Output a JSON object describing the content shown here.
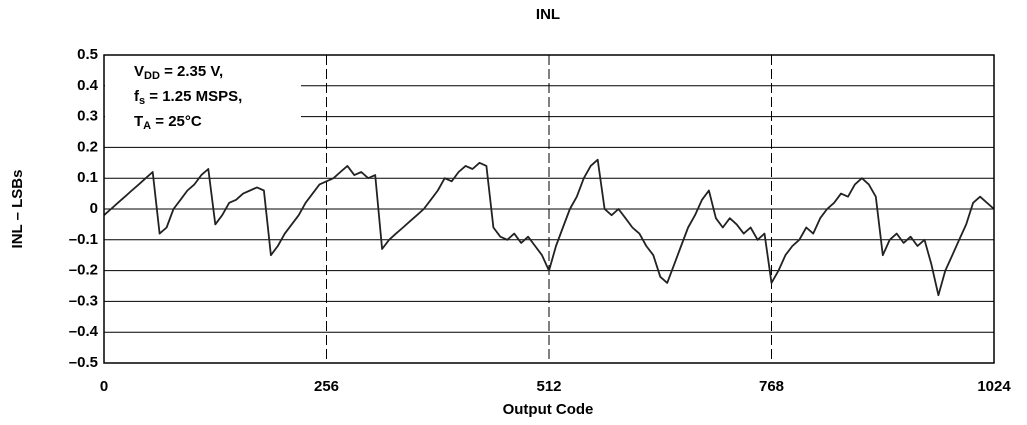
{
  "chart_data": {
    "type": "line",
    "title": "INL",
    "xlabel": "Output Code",
    "ylabel": "INL – LSBs",
    "annotation": [
      {
        "main": "V",
        "sub": "DD",
        "rest": " = 2.35 V,"
      },
      {
        "main": "f",
        "sub": "s",
        "rest": " = 1.25 MSPS,"
      },
      {
        "main": "T",
        "sub": "A",
        "rest": " = 25°C"
      }
    ],
    "color": "#222222",
    "xlim": [
      0,
      1024
    ],
    "xticks": [
      0,
      256,
      512,
      768,
      1024
    ],
    "ylim": [
      -0.5,
      0.5
    ],
    "yticks": [
      {
        "value": -0.5,
        "label": "–0.5"
      },
      {
        "value": -0.4,
        "label": "–0.4"
      },
      {
        "value": -0.3,
        "label": "–0.3"
      },
      {
        "value": -0.2,
        "label": "–0.2"
      },
      {
        "value": -0.1,
        "label": "–0.1"
      },
      0,
      0.1,
      0.2,
      0.3,
      0.4,
      0.5
    ],
    "grid": true,
    "x": [
      0,
      8,
      16,
      24,
      32,
      40,
      48,
      56,
      64,
      72,
      80,
      88,
      96,
      104,
      112,
      120,
      128,
      136,
      144,
      152,
      160,
      168,
      176,
      184,
      192,
      200,
      208,
      216,
      224,
      232,
      240,
      248,
      256,
      264,
      272,
      280,
      288,
      296,
      304,
      312,
      320,
      328,
      336,
      344,
      352,
      360,
      368,
      376,
      384,
      392,
      400,
      408,
      416,
      424,
      432,
      440,
      448,
      456,
      464,
      472,
      480,
      488,
      496,
      504,
      512,
      520,
      528,
      536,
      544,
      552,
      560,
      568,
      576,
      584,
      592,
      600,
      608,
      616,
      624,
      632,
      640,
      648,
      656,
      664,
      672,
      680,
      688,
      696,
      704,
      712,
      720,
      728,
      736,
      744,
      752,
      760,
      768,
      776,
      784,
      792,
      800,
      808,
      816,
      824,
      832,
      840,
      848,
      856,
      864,
      872,
      880,
      888,
      896,
      904,
      912,
      920,
      928,
      936,
      944,
      952,
      960,
      968,
      976,
      984,
      992,
      1000,
      1008,
      1016,
      1024
    ],
    "values": [
      -0.02,
      0.0,
      0.02,
      0.04,
      0.06,
      0.08,
      0.1,
      0.12,
      -0.08,
      -0.06,
      0.0,
      0.03,
      0.06,
      0.08,
      0.11,
      0.13,
      -0.05,
      -0.02,
      0.02,
      0.03,
      0.05,
      0.06,
      0.07,
      0.06,
      -0.15,
      -0.12,
      -0.08,
      -0.05,
      -0.02,
      0.02,
      0.05,
      0.08,
      0.09,
      0.1,
      0.12,
      0.14,
      0.11,
      0.12,
      0.1,
      0.11,
      -0.13,
      -0.1,
      -0.08,
      -0.06,
      -0.04,
      -0.02,
      0.0,
      0.03,
      0.06,
      0.1,
      0.09,
      0.12,
      0.14,
      0.13,
      0.15,
      0.14,
      -0.06,
      -0.09,
      -0.1,
      -0.08,
      -0.11,
      -0.09,
      -0.12,
      -0.15,
      -0.2,
      -0.12,
      -0.06,
      0.0,
      0.04,
      0.1,
      0.14,
      0.16,
      0.0,
      -0.02,
      0.0,
      -0.03,
      -0.06,
      -0.08,
      -0.12,
      -0.15,
      -0.22,
      -0.24,
      -0.18,
      -0.12,
      -0.06,
      -0.02,
      0.03,
      0.06,
      -0.03,
      -0.06,
      -0.03,
      -0.05,
      -0.08,
      -0.06,
      -0.1,
      -0.08,
      -0.24,
      -0.2,
      -0.15,
      -0.12,
      -0.1,
      -0.06,
      -0.08,
      -0.03,
      0.0,
      0.02,
      0.05,
      0.04,
      0.08,
      0.1,
      0.08,
      0.04,
      -0.15,
      -0.1,
      -0.08,
      -0.11,
      -0.09,
      -0.12,
      -0.1,
      -0.18,
      -0.28,
      -0.2,
      -0.15,
      -0.1,
      -0.05,
      0.02,
      0.04,
      0.02,
      0.0
    ]
  }
}
